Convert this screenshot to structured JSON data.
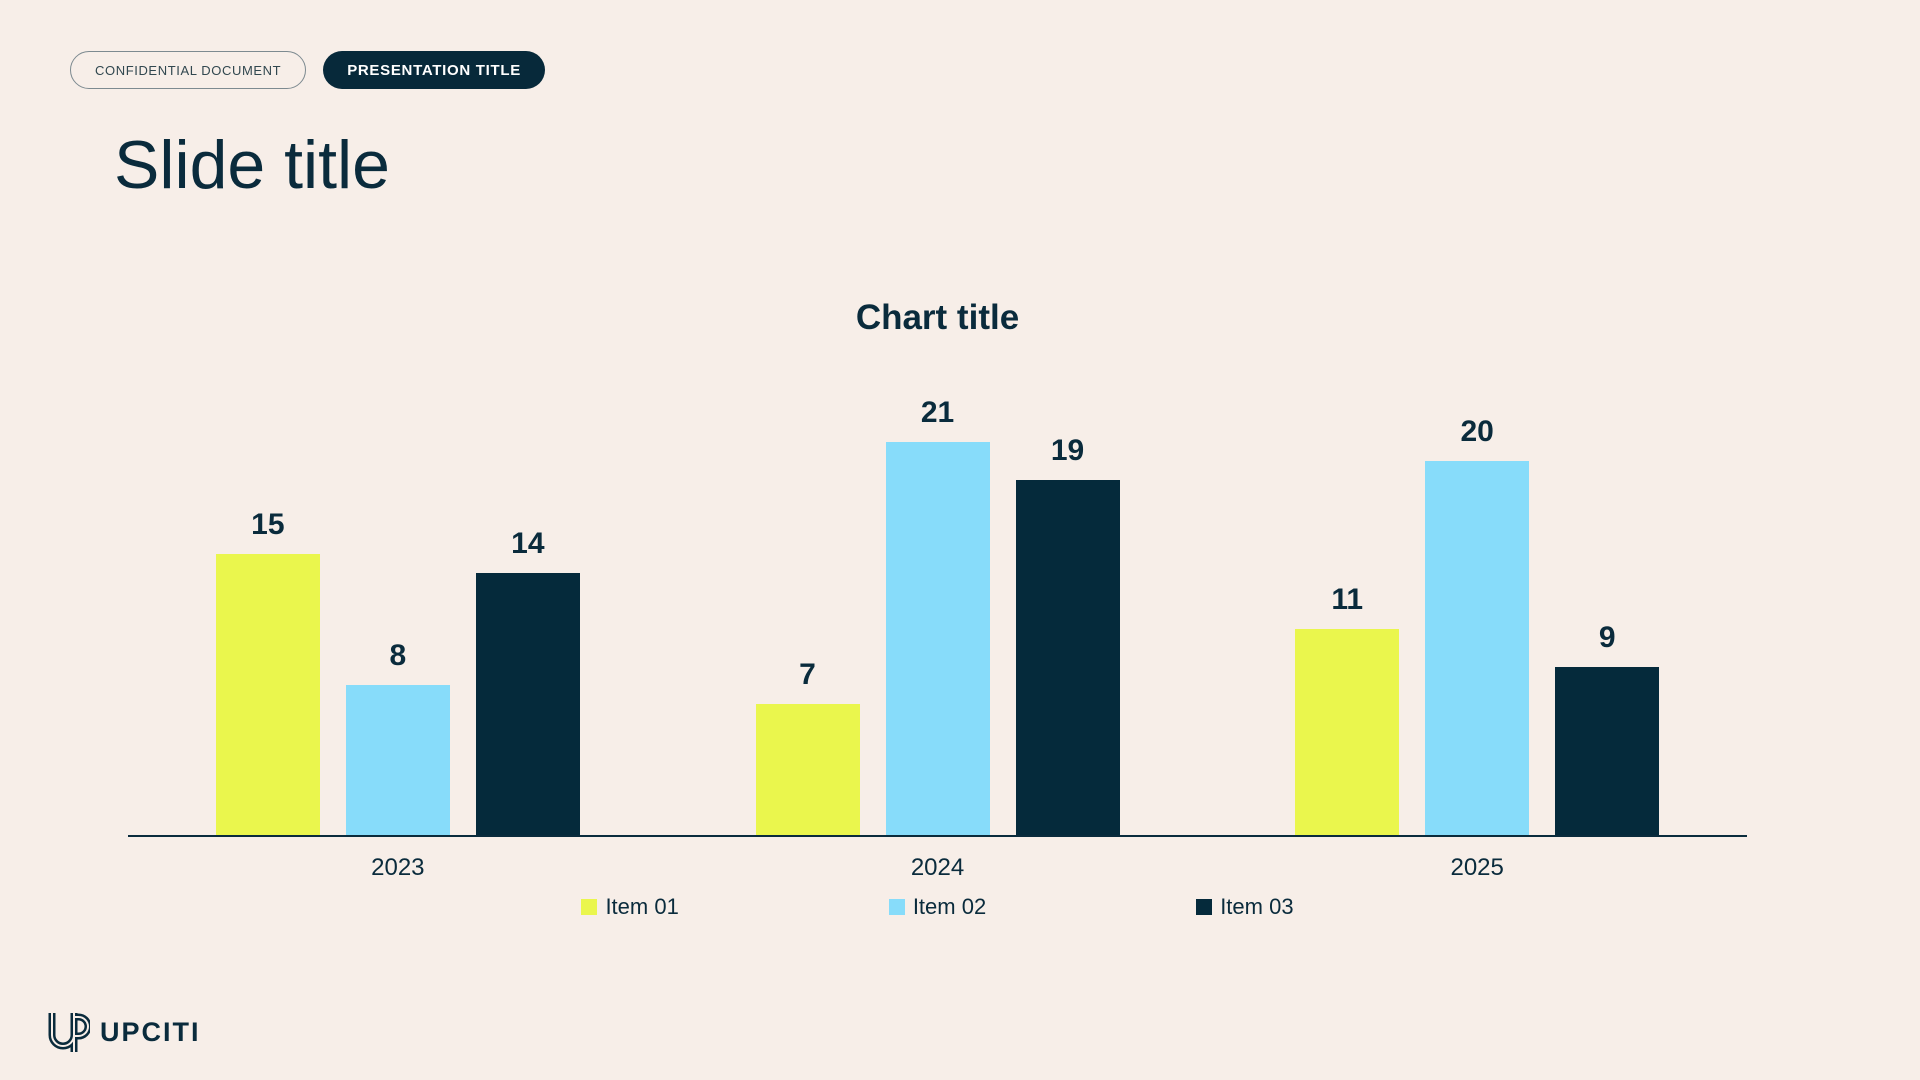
{
  "page": {
    "colors": {
      "background": "#F7EEE8",
      "navy": "#0A2B3C",
      "navy_dark": "#07293A"
    }
  },
  "header": {
    "confidential_badge": "CONFIDENTIAL DOCUMENT",
    "presentation_badge": "PRESENTATION TITLE",
    "slide_title": "Slide title"
  },
  "chart_data": {
    "type": "bar",
    "title": "Chart title",
    "categories": [
      "2023",
      "2024",
      "2025"
    ],
    "series": [
      {
        "name": "Item 01",
        "color": "#EAF64D",
        "values": [
          15,
          7,
          11
        ]
      },
      {
        "name": "Item 02",
        "color": "#87DCFA",
        "values": [
          8,
          21,
          20
        ]
      },
      {
        "name": "Item 03",
        "color": "#052A3B",
        "values": [
          14,
          19,
          9
        ]
      }
    ],
    "value_labels": true,
    "legend_position": "bottom",
    "xlabel": "",
    "ylabel": "",
    "ylim": [
      0,
      21
    ],
    "grid": false
  },
  "footer": {
    "logo_text": "UPCITI",
    "logo_icon": "up-monogram-icon"
  }
}
